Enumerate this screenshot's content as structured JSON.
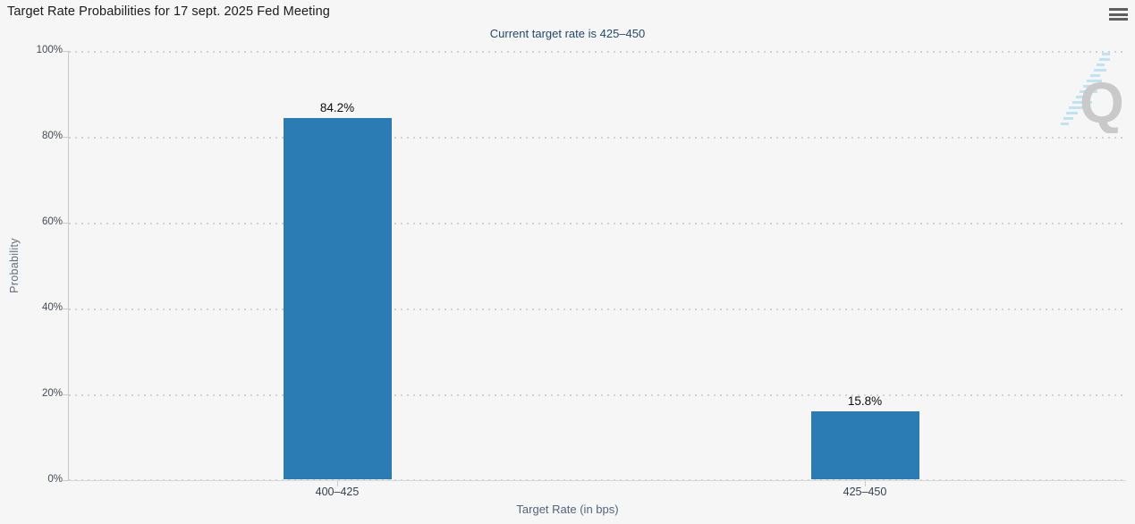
{
  "header": {
    "title": "Target Rate Probabilities for 17 sept. 2025 Fed Meeting",
    "subtitle": "Current target rate is 425–450"
  },
  "chart_data": {
    "type": "bar",
    "title": "Target Rate Probabilities for 17 sept. 2025 Fed Meeting",
    "subtitle": "Current target rate is 425–450",
    "categories": [
      "400–425",
      "425–450"
    ],
    "values": [
      84.2,
      15.8
    ],
    "data_labels": [
      "84.2%",
      "15.8%"
    ],
    "xlabel": "Target Rate (in bps)",
    "ylabel": "Probability",
    "ylim": [
      0,
      100
    ],
    "yticks": [
      "0%",
      "20%",
      "40%",
      "60%",
      "80%",
      "100%"
    ],
    "grid": "horizontal dotted gridlines every 20%",
    "legend": "none",
    "bar_color": "#2b7cb5"
  },
  "watermark": {
    "letter": "Q"
  },
  "colors": {
    "background": "#f6f6f6",
    "bar": "#2b7cb5",
    "subtitle": "#25486e",
    "gridline": "#d2d2d2",
    "axis_line": "#c9c9c9",
    "watermark_q": "#c9c9c9",
    "watermark_streak": "#bfe2f5"
  }
}
